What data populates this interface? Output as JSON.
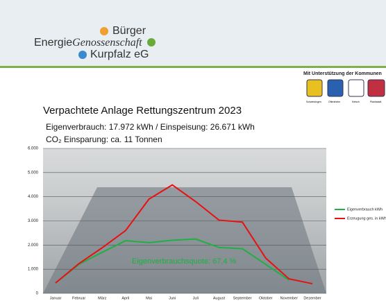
{
  "header": {
    "logo_line1": "Bürger",
    "logo_line2a": "Energie",
    "logo_line2b": "Genossenschaft",
    "logo_line3": "Kurpfalz eG",
    "support": "Mit Unterstützung der Kommunen",
    "towns": [
      "Schwetzingen",
      "Oftersheim",
      "Ketsch",
      "Plankstadt"
    ]
  },
  "chart_data": {
    "type": "line",
    "title": "Verpachtete Anlage Rettungszentrum 2023",
    "subtitle": "Eigenverbrauch: 17.972 kWh / Einspeisung: 26.671 kWh",
    "subtitle2": "CO₂ Einsparung: ca. 11 Tonnen",
    "annotation": "Eigenverbrauchsquote: 67,4 %",
    "categories": [
      "Januar",
      "Februar",
      "März",
      "April",
      "Mai",
      "Juni",
      "Juli",
      "August",
      "September",
      "Oktober",
      "November",
      "Dezember"
    ],
    "series": [
      {
        "name": "Eigenverbrauch kWh",
        "color": "#1eb040",
        "values": [
          430,
          1200,
          1700,
          2180,
          2100,
          2200,
          2250,
          1900,
          1850,
          1200,
          550,
          null
        ]
      },
      {
        "name": "Erzeugung ges. in kWh",
        "color": "#e81010",
        "values": [
          430,
          1230,
          1890,
          2600,
          3900,
          4490,
          3800,
          3030,
          2950,
          1460,
          600,
          400
        ]
      }
    ],
    "ylim": [
      0,
      6000
    ],
    "yticks": [
      0,
      {
        "value": 1000,
        "label": "1.000"
      },
      {
        "value": 2000,
        "label": "2.000"
      },
      {
        "value": 3000,
        "label": "3.000"
      },
      {
        "value": 4000,
        "label": "4.000"
      },
      {
        "value": 5000,
        "label": "5.000"
      },
      {
        "value": 6000,
        "label": "6.000"
      }
    ],
    "grid": true,
    "legend": "right"
  }
}
